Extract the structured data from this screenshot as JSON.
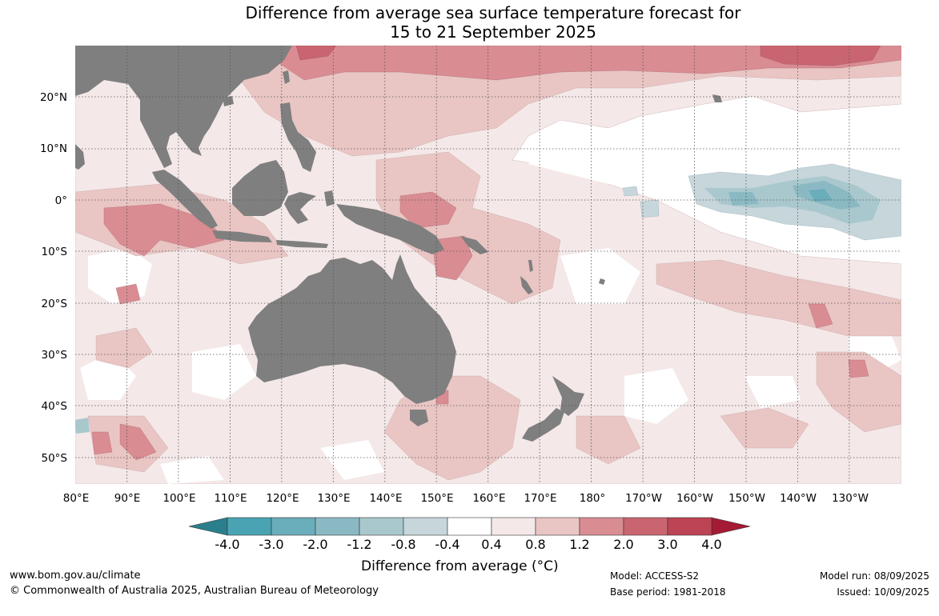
{
  "title": {
    "line1": "Difference from average sea surface temperature forecast for",
    "line2": "15 to 21 September 2025"
  },
  "map": {
    "longitude_labels": [
      "80°E",
      "90°E",
      "100°E",
      "110°E",
      "120°E",
      "130°E",
      "140°E",
      "150°E",
      "160°E",
      "170°E",
      "180°",
      "170°W",
      "160°W",
      "150°W",
      "140°W",
      "130°W"
    ],
    "latitude_labels": [
      "20°N",
      "10°N",
      "0°",
      "10°S",
      "20°S",
      "30°S",
      "40°S",
      "50°S"
    ],
    "land_color": "#7f7f7f",
    "ocean_base_color": "#ffffff"
  },
  "colorbar": {
    "title": "Difference from average (°C)",
    "tick_labels": [
      "-4.0",
      "-3.0",
      "-2.0",
      "-1.2",
      "-0.8",
      "-0.4",
      "0.4",
      "0.8",
      "1.2",
      "2.0",
      "3.0",
      "4.0"
    ],
    "colors": [
      "#2b7f8c",
      "#4aa3b3",
      "#6aadbb",
      "#8bb9c3",
      "#a9c8cd",
      "#c6d6db",
      "#ffffff",
      "#f4e8e8",
      "#e9c5c4",
      "#d98c92",
      "#c96570",
      "#bd4454",
      "#a51a35"
    ]
  },
  "footer": {
    "website": "www.bom.gov.au/climate",
    "copyright": "© Commonwealth of Australia 2025, Australian Bureau of Meteorology",
    "model": "Model: ACCESS-S2",
    "base_period": "Base period: 1981-2018",
    "model_run": "Model run: 08/09/2025",
    "issued": "Issued: 10/09/2025"
  }
}
